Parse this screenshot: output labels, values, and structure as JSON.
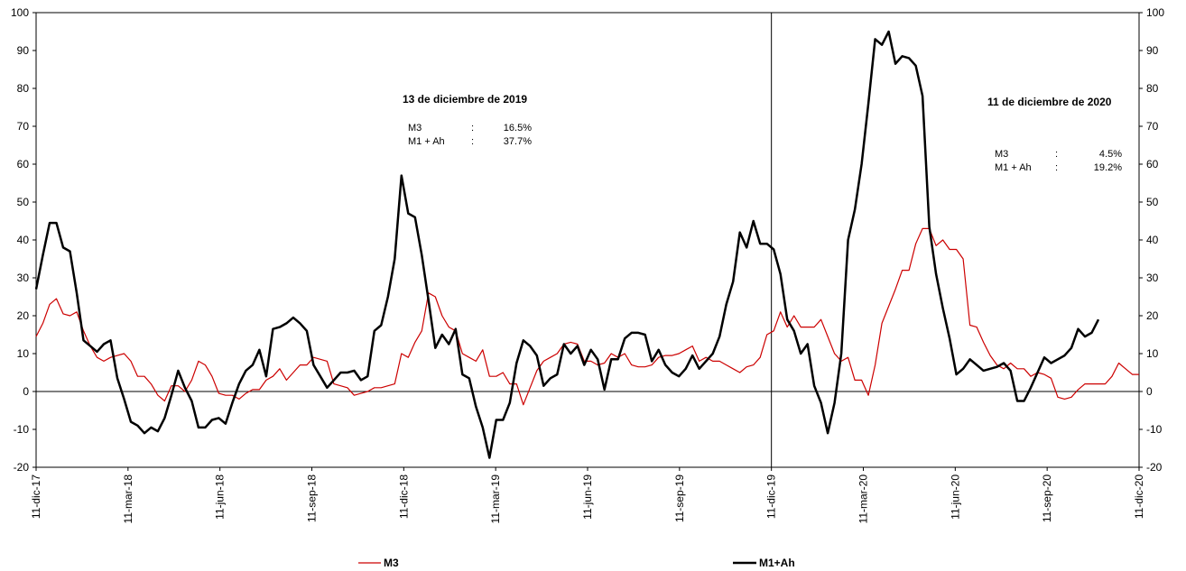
{
  "chart_data": {
    "type": "line",
    "title": "",
    "xlabel": "",
    "ylabel": "",
    "ylim": [
      -20,
      100
    ],
    "y_ticks": [
      "-20",
      "-10",
      "0",
      "10",
      "20",
      "30",
      "40",
      "50",
      "60",
      "70",
      "80",
      "90",
      "100"
    ],
    "x_tick_labels": [
      "11-dic-17",
      "11-mar-18",
      "11-jun-18",
      "11-sep-18",
      "11-dic-18",
      "11-mar-19",
      "11-jun-19",
      "11-sep-19",
      "11-dic-19",
      "11-mar-20",
      "11-jun-20",
      "11-sep-20",
      "11-dic-20"
    ],
    "grid": false,
    "legend_position": "bottom",
    "series": [
      {
        "name": "M3",
        "color": "#cc0000",
        "values": [
          14.5,
          18,
          23,
          24.5,
          20.5,
          20,
          21,
          16,
          12,
          9,
          8,
          9,
          9.5,
          10,
          8,
          4,
          4,
          2,
          -1,
          -2.5,
          1.5,
          1.5,
          0,
          3,
          8,
          7,
          4,
          -0.5,
          -1,
          -1,
          -2,
          -0.5,
          0.5,
          0.5,
          3,
          4,
          6,
          3,
          5,
          7,
          7,
          9,
          8.5,
          8,
          2,
          1.5,
          1,
          -1,
          -0.5,
          0,
          1,
          1,
          1.5,
          2,
          10,
          9,
          13,
          16,
          26,
          25,
          20,
          17,
          16,
          10,
          9,
          8,
          11,
          4,
          4,
          5,
          2,
          2,
          -3.5,
          1,
          5.5,
          8,
          9,
          10,
          12.5,
          13,
          12.5,
          8,
          8,
          7,
          7.5,
          10,
          9,
          10,
          7,
          6.5,
          6.5,
          7,
          9,
          9.5,
          9.5,
          10,
          11,
          12,
          8,
          9,
          8,
          8,
          7,
          6,
          5,
          6.5,
          7,
          9,
          15,
          16,
          21,
          17,
          20,
          17,
          17,
          17,
          19,
          14.5,
          10,
          8,
          9,
          3,
          3,
          -1,
          7,
          18,
          22.5,
          27,
          32,
          32,
          39,
          43,
          43,
          38.5,
          40,
          37.5,
          37.5,
          35,
          17.5,
          17,
          13,
          9.5,
          7,
          6,
          7.5,
          6,
          6,
          4,
          5,
          4.5,
          3.5,
          -1.5,
          -2,
          -1.5,
          0.5,
          2,
          2,
          2,
          2,
          4,
          7.5,
          6,
          4.5,
          4.5
        ]
      },
      {
        "name": "M1+Ah",
        "color": "#000000",
        "values": [
          27,
          36,
          44.5,
          44.5,
          38,
          37,
          26,
          13.5,
          12,
          10.5,
          12.5,
          13.5,
          3.5,
          -2,
          -8,
          -9,
          -11,
          -9.5,
          -10.5,
          -7,
          -1,
          5.5,
          1,
          -2.5,
          -9.5,
          -9.5,
          -7.5,
          -7,
          -8.5,
          -3,
          2,
          5.5,
          7,
          11,
          4,
          16.5,
          17,
          18,
          19.5,
          18,
          16,
          7,
          4,
          1,
          3,
          5,
          5,
          5.5,
          3,
          4,
          16,
          17.5,
          25,
          35,
          57,
          47,
          46,
          36,
          24,
          11.5,
          15,
          12.5,
          16.5,
          4.5,
          3.5,
          -4,
          -9.5,
          -17.5,
          -7.5,
          -7.5,
          -3,
          7.5,
          13.5,
          12,
          9.5,
          1.5,
          3.5,
          4.5,
          12.5,
          10,
          12,
          7,
          11,
          8.5,
          0.5,
          8.5,
          8.5,
          14,
          15.5,
          15.5,
          15,
          8,
          11,
          7,
          5,
          4,
          6,
          9.5,
          6,
          8,
          10,
          14.5,
          23,
          29,
          42,
          38,
          45,
          39,
          39,
          37.5,
          31,
          19,
          16,
          10,
          12.5,
          1.5,
          -3,
          -11,
          -3,
          10,
          40,
          48,
          60,
          76,
          93,
          91.5,
          95,
          86.5,
          88.5,
          88,
          86,
          78,
          43.5,
          31,
          22,
          14,
          4.5,
          6,
          8.5,
          7,
          5.5,
          6,
          6.5,
          7.5,
          5.5,
          -2.5,
          -2.5,
          1,
          5,
          9,
          7.5,
          8.5,
          9.5,
          11.5,
          16.5,
          14.5,
          15.5,
          19
        ]
      }
    ],
    "marker_label": "11-dic-19",
    "annotations": [
      {
        "title": "13 de diciembre de 2019",
        "rows": [
          {
            "label": "M3",
            "sep": ":",
            "value": "16.5%"
          },
          {
            "label": "M1 + Ah",
            "sep": ":",
            "value": "37.7%"
          }
        ]
      },
      {
        "title": "11 de diciembre de 2020",
        "rows": [
          {
            "label": "M3",
            "sep": ":",
            "value": "4.5%"
          },
          {
            "label": "M1 + Ah",
            "sep": ":",
            "value": "19.2%"
          }
        ]
      }
    ]
  }
}
